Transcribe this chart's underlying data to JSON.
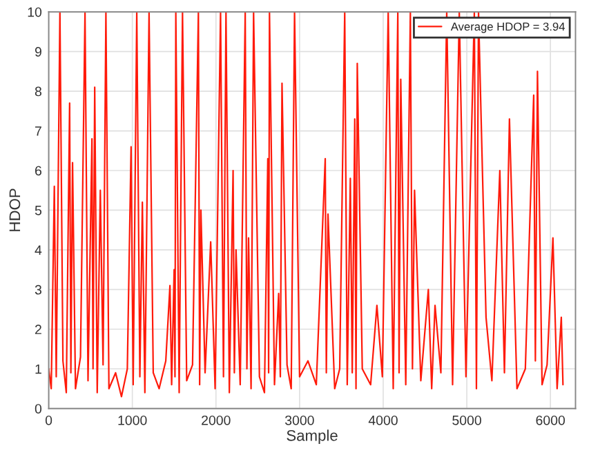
{
  "chart_data": {
    "type": "line",
    "xlabel": "Sample",
    "ylabel": "HDOP",
    "xlim": [
      0,
      6300
    ],
    "xticks": [
      0,
      1000,
      2000,
      3000,
      4000,
      5000,
      6000
    ],
    "ylim": [
      0,
      10
    ],
    "yticks": [
      0,
      1,
      2,
      3,
      4,
      5,
      6,
      7,
      8,
      9,
      10
    ],
    "grid": true,
    "legend": "top right",
    "series": [
      {
        "name": "Average HDOP = 3.94",
        "color": "#ff1a0a",
        "x": [
          0,
          30,
          67,
          90,
          134,
          170,
          210,
          250,
          265,
          285,
          320,
          380,
          434,
          470,
          517,
          530,
          550,
          580,
          617,
          650,
          684,
          720,
          800,
          870,
          940,
          985,
          1010,
          1053,
          1090,
          1120,
          1150,
          1200,
          1250,
          1320,
          1400,
          1450,
          1470,
          1500,
          1510,
          1520,
          1560,
          1600,
          1650,
          1720,
          1790,
          1805,
          1820,
          1870,
          1937,
          1990,
          2055,
          2090,
          2120,
          2160,
          2205,
          2220,
          2240,
          2290,
          2350,
          2370,
          2390,
          2420,
          2450,
          2520,
          2580,
          2620,
          2630,
          2640,
          2700,
          2750,
          2770,
          2790,
          2850,
          2900,
          2940,
          3000,
          3100,
          3200,
          3307,
          3320,
          3340,
          3420,
          3480,
          3540,
          3570,
          3607,
          3630,
          3660,
          3675,
          3690,
          3750,
          3850,
          3925,
          3990,
          4060,
          4120,
          4175,
          4190,
          4210,
          4270,
          4325,
          4350,
          4375,
          4450,
          4540,
          4580,
          4620,
          4690,
          4760,
          4830,
          4910,
          4990,
          5090,
          5115,
          5140,
          5230,
          5300,
          5395,
          5450,
          5510,
          5600,
          5700,
          5800,
          5820,
          5845,
          5900,
          5960,
          6030,
          6080,
          6130,
          6150
        ],
        "values": [
          1.0,
          0.5,
          5.6,
          0.8,
          10,
          1.2,
          0.4,
          7.7,
          0.9,
          6.2,
          0.5,
          1.3,
          10,
          0.7,
          6.8,
          1.0,
          8.1,
          0.4,
          5.5,
          1.1,
          10,
          0.5,
          0.9,
          0.3,
          1.0,
          6.6,
          0.6,
          10,
          0.8,
          5.2,
          0.4,
          10,
          0.9,
          0.5,
          1.2,
          3.1,
          0.6,
          3.5,
          0.8,
          10,
          0.4,
          10,
          0.7,
          1.1,
          10,
          0.6,
          5.0,
          0.9,
          4.2,
          0.5,
          10,
          0.8,
          10,
          0.4,
          6.0,
          0.9,
          4.0,
          0.6,
          10,
          1.0,
          4.3,
          0.5,
          10,
          0.8,
          0.4,
          6.3,
          0.9,
          10,
          0.6,
          2.9,
          0.8,
          8.2,
          1.1,
          0.5,
          10,
          0.8,
          1.2,
          0.6,
          6.3,
          0.9,
          4.9,
          0.5,
          1.0,
          10,
          0.6,
          5.8,
          0.9,
          7.3,
          0.5,
          8.7,
          1.0,
          0.6,
          2.6,
          0.8,
          10,
          0.5,
          10,
          0.9,
          8.3,
          0.6,
          10,
          1.0,
          5.5,
          0.7,
          3.0,
          0.5,
          2.6,
          0.9,
          10,
          0.6,
          10,
          0.8,
          10,
          0.5,
          10,
          2.3,
          0.7,
          6.0,
          0.9,
          7.3,
          0.5,
          1.0,
          7.9,
          1.2,
          8.5,
          0.6,
          1.1,
          4.3,
          0.5,
          2.3,
          0.6
        ]
      }
    ]
  }
}
